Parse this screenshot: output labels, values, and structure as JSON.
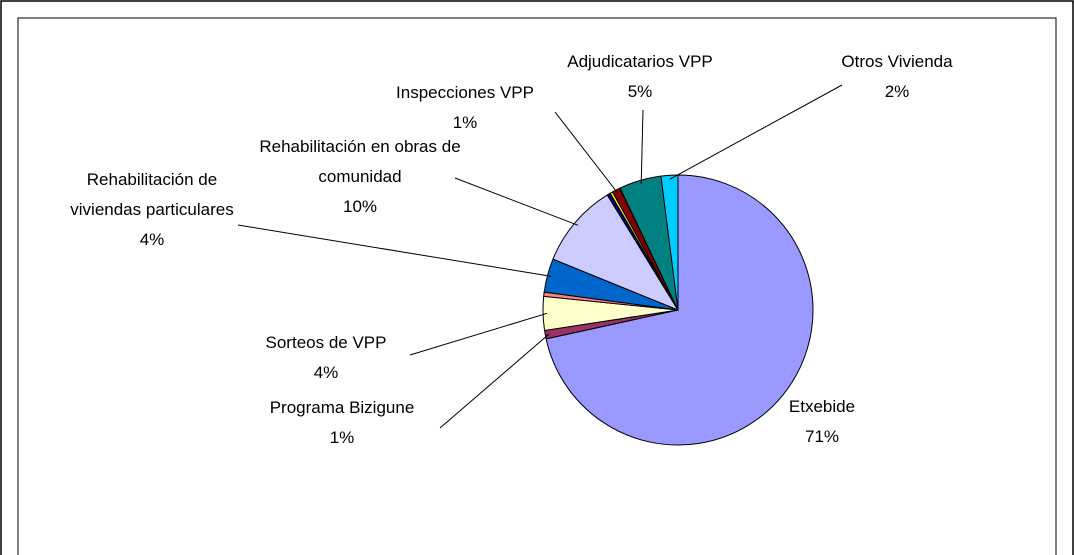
{
  "chart_data": {
    "type": "pie",
    "categories": [
      "Etxebide",
      "Programa Bizigune",
      "Sorteos de VPP",
      null,
      "Rehabilitación de viviendas particulares",
      "Rehabilitación en obras de comunidad",
      null,
      null,
      "Inspecciones VPP",
      "Adjudicatarios VPP",
      "Otros Vivienda"
    ],
    "values": [
      71,
      1,
      4,
      0.5,
      4,
      10,
      0.4,
      0.3,
      1,
      5,
      2
    ],
    "value_labels": [
      "71%",
      "1%",
      "4%",
      null,
      "4%",
      "10%",
      null,
      null,
      "1%",
      "5%",
      "2%"
    ],
    "colors": [
      "#9999ff",
      "#993366",
      "#ffffcc",
      "#ff8080",
      "#0066cc",
      "#ccccff",
      "#000080",
      "#ffff00",
      "#800000",
      "#008080",
      "#00ccff"
    ]
  }
}
